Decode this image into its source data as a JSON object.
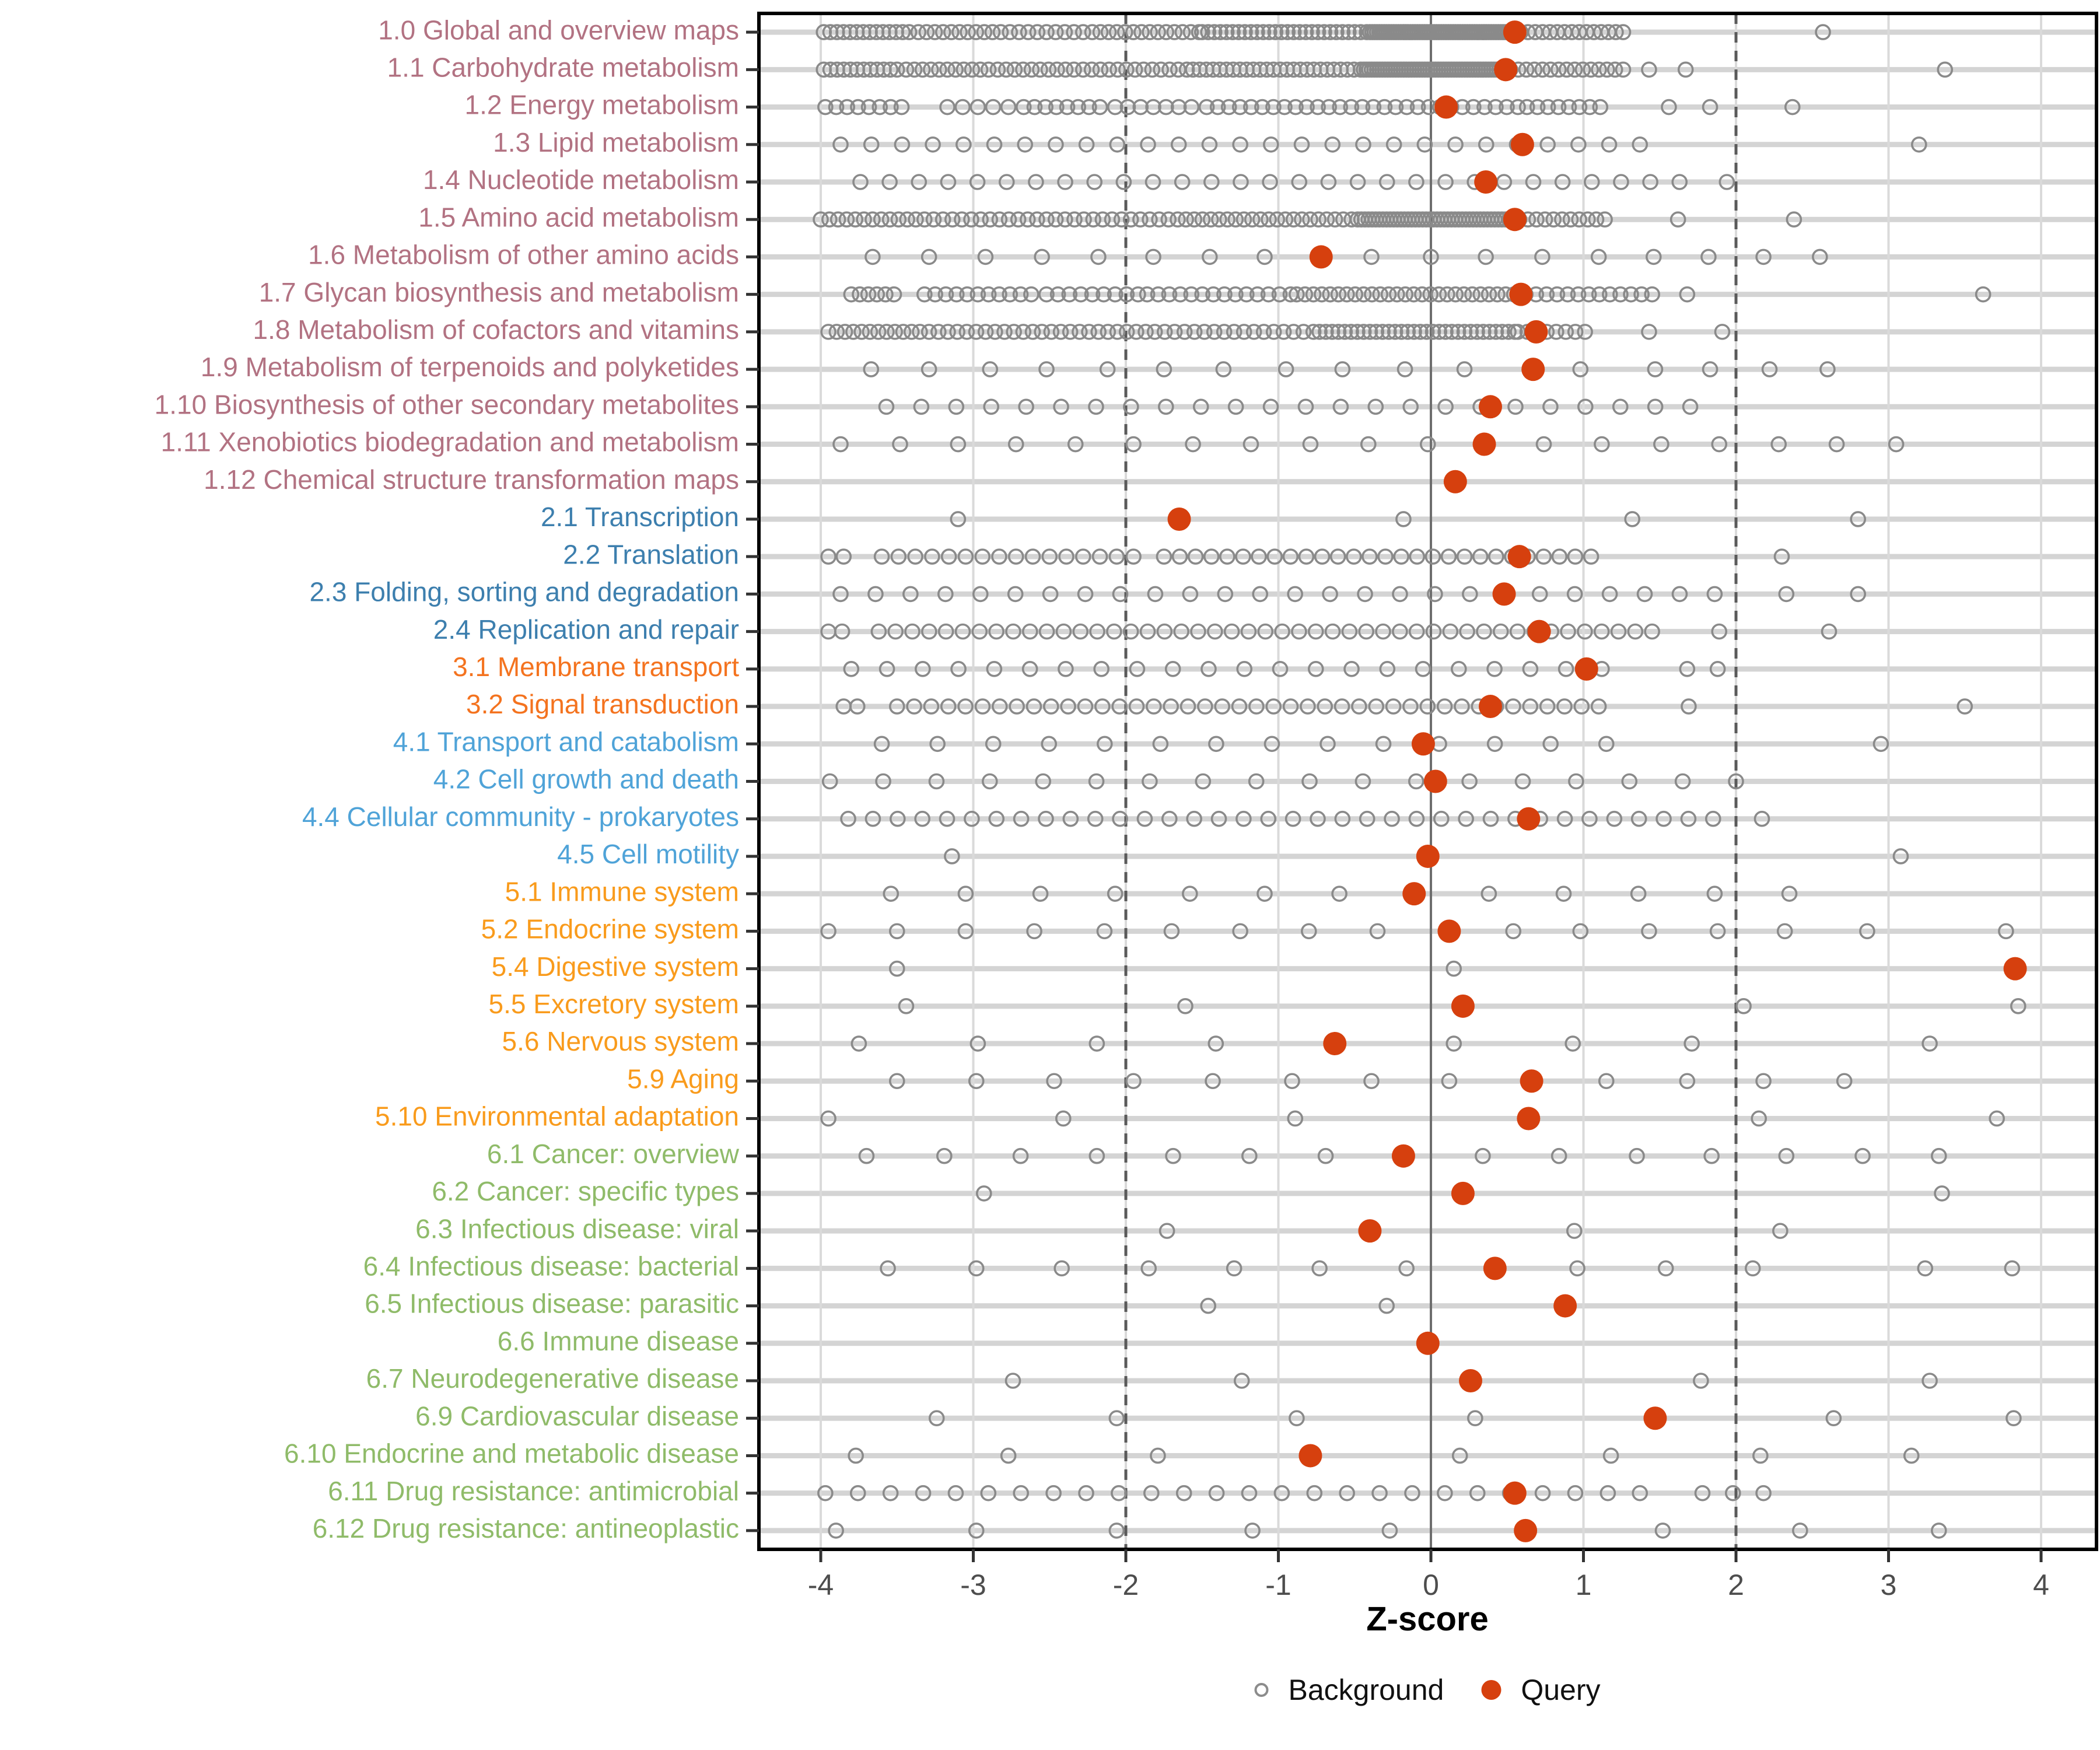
{
  "chart_data": {
    "type": "scatter",
    "subtype": "strip-dot-plot",
    "title": "",
    "xlabel": "Z-score",
    "ylabel": "",
    "xlim": [
      -4.4,
      4.36
    ],
    "x_ticks": [
      -4,
      -3,
      -2,
      -1,
      0,
      1,
      2,
      3,
      4
    ],
    "grid": "light-gray vertical lines at integer ticks; light-gray horizontal guide per row",
    "ref_lines": {
      "solid_at": 0,
      "dashed_at": [
        -2,
        2
      ]
    },
    "legend_position": "bottom-center",
    "legend": [
      {
        "label": "Background",
        "marker": "open-circle",
        "color": "#8c8c8c"
      },
      {
        "label": "Query",
        "marker": "filled-circle",
        "color": "#d6400e"
      }
    ],
    "colors": {
      "query": "#d6400e",
      "background_stroke": "#8a8a8a",
      "grid_light": "#dadada",
      "row_guide": "#d4d4d4",
      "ref_dark": "#5a5a5a",
      "zero_line": "#6e6e6e",
      "panel_border": "#000000",
      "tick_text": "#4d4d4d",
      "group_metabolism": "#b27282",
      "group_genetic": "#3d7fae",
      "group_environmental": "#f4731f",
      "group_cellular": "#4fa3d8",
      "group_organismal": "#f99b1c",
      "group_disease": "#8fbb69"
    },
    "rows": [
      {
        "label": "1.0 Global and overview maps",
        "group": "group_metabolism",
        "query": 0.55,
        "bg_segments": [
          [
            -3.98,
            -3.42,
            14
          ],
          [
            -3.36,
            -2.82,
            11
          ],
          [
            -2.76,
            -2.28,
            9
          ],
          [
            -2.22,
            -1.52,
            14
          ],
          [
            -1.5,
            -0.42,
            28
          ],
          [
            -0.4,
            0.52,
            60
          ],
          [
            0.54,
            1.26,
            16
          ]
        ],
        "bg_points": [
          2.57
        ]
      },
      {
        "label": "1.1 Carbohydrate metabolism",
        "group": "group_metabolism",
        "query": 0.49,
        "bg_segments": [
          [
            -3.98,
            -3.5,
            12
          ],
          [
            -3.44,
            -2.9,
            11
          ],
          [
            -2.84,
            -2.34,
            10
          ],
          [
            -2.28,
            -1.6,
            13
          ],
          [
            -1.56,
            -0.46,
            26
          ],
          [
            -0.44,
            0.5,
            55
          ],
          [
            0.52,
            1.26,
            15
          ]
        ],
        "bg_points": [
          1.43,
          1.67,
          3.37
        ]
      },
      {
        "label": "1.2 Energy metabolism",
        "group": "group_metabolism",
        "query": 0.1,
        "bg_segments": [
          [
            -3.97,
            -3.47,
            8
          ],
          [
            -3.17,
            -2.77,
            5
          ],
          [
            -2.67,
            -2.17,
            8
          ],
          [
            -2.07,
            -1.57,
            7
          ],
          [
            -1.47,
            0.57,
            29
          ],
          [
            0.63,
            1.11,
            8
          ]
        ],
        "bg_points": [
          1.56,
          1.83,
          2.37
        ]
      },
      {
        "label": "1.3 Lipid metabolism",
        "group": "group_metabolism",
        "query": 0.6,
        "bg_segments": [
          [
            -3.87,
            1.37,
            27
          ]
        ],
        "bg_points": [
          3.2
        ]
      },
      {
        "label": "1.4 Nucleotide metabolism",
        "group": "group_metabolism",
        "query": 0.36,
        "bg_segments": [
          [
            -3.74,
            1.63,
            29
          ]
        ],
        "bg_points": [
          1.94
        ]
      },
      {
        "label": "1.5 Amino acid metabolism",
        "group": "group_metabolism",
        "query": 0.55,
        "bg_segments": [
          [
            -4.0,
            -3.32,
            13
          ],
          [
            -3.26,
            -2.52,
            13
          ],
          [
            -2.46,
            -1.72,
            13
          ],
          [
            -1.66,
            -0.52,
            22
          ],
          [
            -0.48,
            0.56,
            45
          ],
          [
            0.58,
            1.14,
            11
          ]
        ],
        "bg_points": [
          1.62,
          2.38
        ]
      },
      {
        "label": "1.6 Metabolism of other amino acids",
        "group": "group_metabolism",
        "query": -0.72,
        "bg_segments": [],
        "bg_points": [
          -3.66,
          -3.29,
          -2.92,
          -2.55,
          -2.18,
          -1.82,
          -1.45,
          -1.09,
          -0.39,
          0.0,
          0.36,
          0.73,
          1.1,
          1.46,
          1.82,
          2.18,
          2.55
        ]
      },
      {
        "label": "1.7 Glycan biosynthesis and metabolism",
        "group": "group_metabolism",
        "query": 0.59,
        "bg_segments": [
          [
            -3.8,
            -3.52,
            6
          ],
          [
            -3.32,
            -2.62,
            11
          ],
          [
            -2.52,
            -1.92,
            9
          ],
          [
            -1.86,
            -0.92,
            14
          ],
          [
            -0.88,
            0.6,
            28
          ],
          [
            0.62,
            1.45,
            13
          ]
        ],
        "bg_points": [
          1.68,
          3.62
        ]
      },
      {
        "label": "1.8 Metabolism of cofactors and vitamins",
        "group": "group_metabolism",
        "query": 0.69,
        "bg_segments": [
          [
            -3.95,
            -3.35,
            12
          ],
          [
            -3.29,
            -2.61,
            12
          ],
          [
            -2.55,
            -1.87,
            12
          ],
          [
            -1.81,
            -0.77,
            17
          ],
          [
            -0.73,
            0.55,
            32
          ],
          [
            0.57,
            1.01,
            8
          ]
        ],
        "bg_points": [
          1.43,
          1.91
        ]
      },
      {
        "label": "1.9 Metabolism of terpenoids and polyketides",
        "group": "group_metabolism",
        "query": 0.67,
        "bg_segments": [],
        "bg_points": [
          -3.67,
          -3.29,
          -2.89,
          -2.52,
          -2.12,
          -1.75,
          -1.36,
          -0.95,
          -0.58,
          -0.17,
          0.22,
          0.98,
          1.47,
          1.83,
          2.22,
          2.6
        ]
      },
      {
        "label": "1.10 Biosynthesis of other secondary metabolites",
        "group": "group_metabolism",
        "query": 0.39,
        "bg_segments": [
          [
            -3.57,
            1.7,
            24
          ]
        ],
        "bg_points": []
      },
      {
        "label": "1.11 Xenobiotics biodegradation and metabolism",
        "group": "group_metabolism",
        "query": 0.35,
        "bg_segments": [],
        "bg_points": [
          -3.87,
          -3.48,
          -3.1,
          -2.72,
          -2.33,
          -1.95,
          -1.56,
          -1.18,
          -0.79,
          -0.41,
          -0.02,
          0.74,
          1.12,
          1.51,
          1.89,
          2.28,
          2.66,
          3.05
        ]
      },
      {
        "label": "1.12 Chemical structure transformation maps",
        "group": "group_metabolism",
        "query": 0.16,
        "bg_segments": [],
        "bg_points": []
      },
      {
        "label": "2.1 Transcription",
        "group": "group_genetic",
        "query": -1.65,
        "bg_segments": [],
        "bg_points": [
          -3.1,
          -0.18,
          1.32,
          2.8
        ]
      },
      {
        "label": "2.2 Translation",
        "group": "group_genetic",
        "query": 0.58,
        "bg_segments": [
          [
            -3.6,
            -1.95,
            16
          ],
          [
            -1.75,
            1.05,
            28
          ]
        ],
        "bg_points": [
          -3.95,
          -3.85,
          2.3
        ]
      },
      {
        "label": "2.3 Folding, sorting and degradation",
        "group": "group_genetic",
        "query": 0.48,
        "bg_segments": [
          [
            -3.87,
            1.86,
            26
          ]
        ],
        "bg_points": [
          2.33,
          2.8
        ]
      },
      {
        "label": "2.4 Replication and repair",
        "group": "group_genetic",
        "query": 0.71,
        "bg_segments": [
          [
            -3.62,
            1.45,
            47
          ]
        ],
        "bg_points": [
          -3.95,
          -3.86,
          1.89,
          2.61
        ]
      },
      {
        "label": "3.1 Membrane transport",
        "group": "group_environmental",
        "query": 1.02,
        "bg_segments": [
          [
            -3.8,
            1.12,
            22
          ]
        ],
        "bg_points": [
          1.68,
          1.88
        ]
      },
      {
        "label": "3.2 Signal transduction",
        "group": "group_environmental",
        "query": 0.39,
        "bg_segments": [
          [
            -3.5,
            1.1,
            42
          ]
        ],
        "bg_points": [
          -3.85,
          -3.76,
          1.69,
          3.5
        ]
      },
      {
        "label": "4.1 Transport and catabolism",
        "group": "group_cellular",
        "query": -0.05,
        "bg_segments": [
          [
            -3.6,
            1.15,
            14
          ]
        ],
        "bg_points": [
          2.95
        ]
      },
      {
        "label": "4.2 Cell growth and death",
        "group": "group_cellular",
        "query": 0.03,
        "bg_segments": [
          [
            -3.94,
            2.0,
            18
          ]
        ],
        "bg_points": []
      },
      {
        "label": "4.4 Cellular community - prokaryotes",
        "group": "group_cellular",
        "query": 0.64,
        "bg_segments": [
          [
            -3.82,
            1.85,
            36
          ]
        ],
        "bg_points": [
          2.17
        ]
      },
      {
        "label": "4.5 Cell motility",
        "group": "group_cellular",
        "query": -0.02,
        "bg_segments": [],
        "bg_points": [
          -3.14,
          3.08
        ]
      },
      {
        "label": "5.1 Immune system",
        "group": "group_organismal",
        "query": -0.11,
        "bg_segments": [],
        "bg_points": [
          -3.54,
          -3.05,
          -2.56,
          -2.07,
          -1.58,
          -1.09,
          -0.6,
          0.38,
          0.87,
          1.36,
          1.86,
          2.35
        ]
      },
      {
        "label": "5.2 Endocrine system",
        "group": "group_organismal",
        "query": 0.12,
        "bg_segments": [],
        "bg_points": [
          -3.95,
          -3.5,
          -3.05,
          -2.6,
          -2.14,
          -1.7,
          -1.25,
          -0.8,
          -0.35,
          0.54,
          0.98,
          1.43,
          1.88,
          2.32,
          2.86,
          3.77
        ]
      },
      {
        "label": "5.4 Digestive system",
        "group": "group_organismal",
        "query": 3.83,
        "bg_segments": [],
        "bg_points": [
          -3.5,
          0.15
        ]
      },
      {
        "label": "5.5 Excretory system",
        "group": "group_organismal",
        "query": 0.21,
        "bg_segments": [],
        "bg_points": [
          -3.44,
          -1.61,
          2.05,
          3.85
        ]
      },
      {
        "label": "5.6 Nervous system",
        "group": "group_organismal",
        "query": -0.63,
        "bg_segments": [],
        "bg_points": [
          -3.75,
          -2.97,
          -2.19,
          -1.41,
          0.15,
          0.93,
          1.71,
          3.27
        ]
      },
      {
        "label": "5.9 Aging",
        "group": "group_organismal",
        "query": 0.66,
        "bg_segments": [],
        "bg_points": [
          -3.5,
          -2.98,
          -2.47,
          -1.95,
          -1.43,
          -0.91,
          -0.39,
          0.12,
          1.15,
          1.68,
          2.18,
          2.71
        ]
      },
      {
        "label": "5.10 Environmental adaptation",
        "group": "group_organismal",
        "query": 0.64,
        "bg_segments": [],
        "bg_points": [
          -3.95,
          -2.41,
          -0.89,
          2.15,
          3.71
        ]
      },
      {
        "label": "6.1 Cancer: overview",
        "group": "group_disease",
        "query": -0.18,
        "bg_segments": [],
        "bg_points": [
          -3.7,
          -3.19,
          -2.69,
          -2.19,
          -1.69,
          -1.19,
          -0.69,
          0.34,
          0.84,
          1.35,
          1.84,
          2.33,
          2.83,
          3.33
        ]
      },
      {
        "label": "6.2 Cancer: specific types",
        "group": "group_disease",
        "query": 0.21,
        "bg_segments": [],
        "bg_points": [
          -2.93,
          3.35
        ]
      },
      {
        "label": "6.3 Infectious disease: viral",
        "group": "group_disease",
        "query": -0.4,
        "bg_segments": [],
        "bg_points": [
          -1.73,
          0.94,
          2.29
        ]
      },
      {
        "label": "6.4 Infectious disease: bacterial",
        "group": "group_disease",
        "query": 0.42,
        "bg_segments": [],
        "bg_points": [
          -3.56,
          -2.98,
          -2.42,
          -1.85,
          -1.29,
          -0.73,
          -0.16,
          0.96,
          1.54,
          2.11,
          3.24,
          3.81
        ]
      },
      {
        "label": "6.5 Infectious disease: parasitic",
        "group": "group_disease",
        "query": 0.88,
        "bg_segments": [],
        "bg_points": [
          -1.46,
          -0.29
        ]
      },
      {
        "label": "6.6 Immune disease",
        "group": "group_disease",
        "query": -0.02,
        "bg_segments": [],
        "bg_points": []
      },
      {
        "label": "6.7 Neurodegenerative disease",
        "group": "group_disease",
        "query": 0.26,
        "bg_segments": [],
        "bg_points": [
          -2.74,
          -1.24,
          1.77,
          3.27
        ]
      },
      {
        "label": "6.9 Cardiovascular disease",
        "group": "group_disease",
        "query": 1.47,
        "bg_segments": [],
        "bg_points": [
          -3.24,
          -2.06,
          -0.88,
          0.29,
          2.64,
          3.82
        ]
      },
      {
        "label": "6.10 Endocrine and metabolic disease",
        "group": "group_disease",
        "query": -0.79,
        "bg_segments": [],
        "bg_points": [
          -3.77,
          -2.77,
          -1.79,
          0.19,
          1.18,
          2.16,
          3.15
        ]
      },
      {
        "label": "6.11 Drug resistance: antimicrobial",
        "group": "group_disease",
        "query": 0.55,
        "bg_segments": [
          [
            -3.97,
            1.16,
            25
          ]
        ],
        "bg_points": [
          1.37,
          1.78,
          1.98,
          2.18
        ]
      },
      {
        "label": "6.12 Drug resistance: antineoplastic",
        "group": "group_disease",
        "query": 0.62,
        "bg_segments": [],
        "bg_points": [
          -3.9,
          -2.98,
          -2.06,
          -1.17,
          -0.27,
          1.52,
          2.42,
          3.33
        ]
      }
    ]
  }
}
